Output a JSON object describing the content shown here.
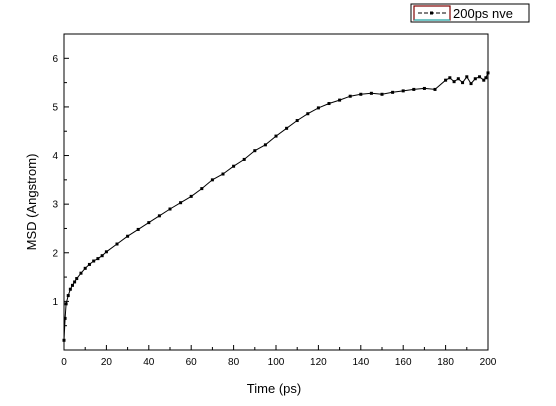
{
  "chart_data": {
    "type": "scatter",
    "title": "",
    "xlabel": "Time (ps)",
    "ylabel": "MSD (Angstrom)",
    "xlim": [
      0,
      200
    ],
    "ylim": [
      0,
      6.5
    ],
    "xticks": [
      0,
      20,
      40,
      60,
      80,
      100,
      120,
      140,
      160,
      180,
      200
    ],
    "yticks": [
      1,
      2,
      3,
      4,
      5,
      6
    ],
    "grid": false,
    "legend": {
      "position": "top-right",
      "entries": [
        "200ps nve"
      ]
    },
    "colors": {
      "series": "#000000",
      "legend_frame": "#800000",
      "legend_accent": "#00c0c0"
    },
    "series": [
      {
        "name": "200ps nve",
        "x": [
          0,
          0.5,
          1,
          2,
          3,
          4,
          5,
          6,
          8,
          10,
          12,
          14,
          16,
          18,
          20,
          25,
          30,
          35,
          40,
          45,
          50,
          55,
          60,
          65,
          70,
          75,
          80,
          85,
          90,
          95,
          100,
          105,
          110,
          115,
          120,
          125,
          130,
          135,
          140,
          145,
          150,
          155,
          160,
          165,
          170,
          175,
          180,
          182,
          184,
          186,
          188,
          190,
          192,
          194,
          196,
          198,
          199,
          200
        ],
        "y": [
          0.2,
          0.65,
          0.95,
          1.12,
          1.25,
          1.33,
          1.4,
          1.47,
          1.58,
          1.68,
          1.76,
          1.83,
          1.88,
          1.94,
          2.02,
          2.18,
          2.34,
          2.48,
          2.62,
          2.76,
          2.9,
          3.03,
          3.16,
          3.32,
          3.5,
          3.62,
          3.78,
          3.92,
          4.1,
          4.22,
          4.4,
          4.56,
          4.72,
          4.86,
          4.98,
          5.07,
          5.14,
          5.22,
          5.26,
          5.28,
          5.26,
          5.3,
          5.33,
          5.36,
          5.38,
          5.36,
          5.55,
          5.6,
          5.52,
          5.58,
          5.5,
          5.62,
          5.48,
          5.58,
          5.62,
          5.55,
          5.6,
          5.7
        ]
      }
    ]
  }
}
